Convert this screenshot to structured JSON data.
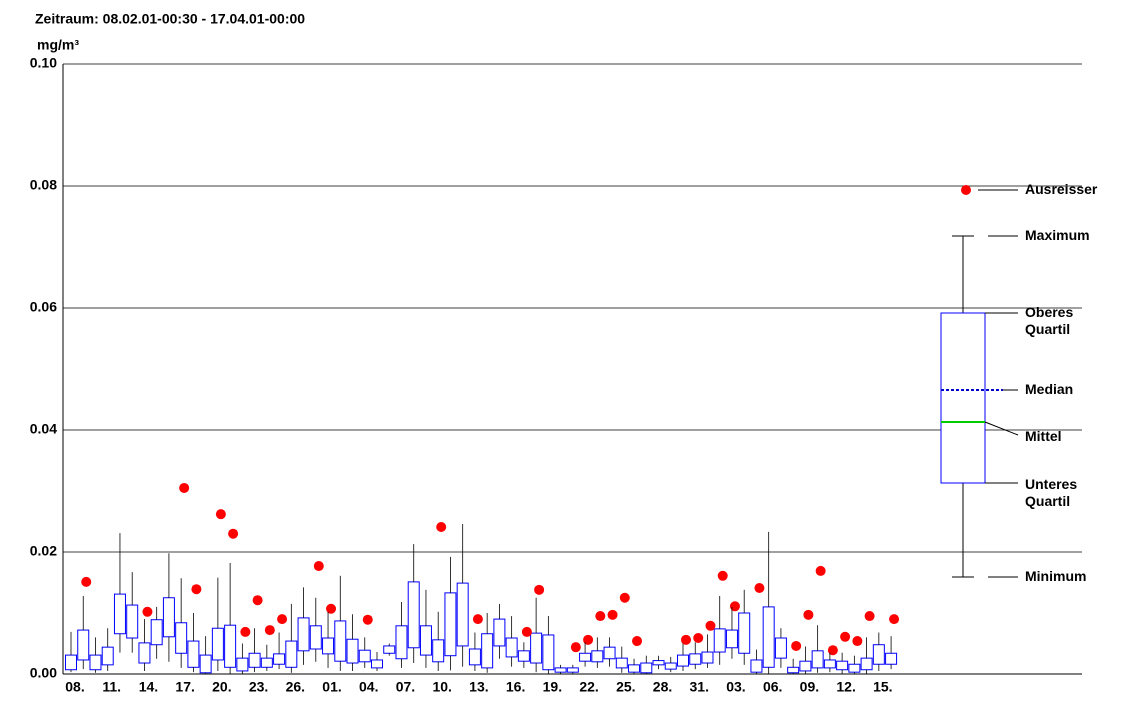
{
  "chart_data": {
    "type": "box",
    "title": "Zeitraum: 08.02.01-00:30 - 17.04.01-00:00",
    "y_label": "mg/m³",
    "categories": [
      "08.",
      null,
      null,
      "11.",
      null,
      null,
      "14.",
      null,
      null,
      "17.",
      null,
      null,
      "20.",
      null,
      null,
      "23.",
      null,
      null,
      "26.",
      null,
      null,
      "01.",
      null,
      null,
      "04.",
      null,
      null,
      "07.",
      null,
      null,
      "10.",
      null,
      null,
      "13.",
      null,
      null,
      "16.",
      null,
      null,
      "19.",
      null,
      null,
      "22.",
      null,
      null,
      "25.",
      null,
      null,
      "28.",
      null,
      null,
      "31.",
      null,
      null,
      "03.",
      null,
      null,
      "06.",
      null,
      null,
      "09.",
      null,
      null,
      "12.",
      null,
      null,
      "15.",
      null
    ],
    "min": [
      0.0003,
      0.0008,
      0.0002,
      0.0005,
      0.0035,
      0.0035,
      0.0005,
      0.0025,
      0.002,
      0.001,
      0.0003,
      0,
      0.0005,
      0,
      0,
      0.0003,
      0.0005,
      0.0008,
      0.0002,
      0.0015,
      0.002,
      0.001,
      0.0005,
      0.0005,
      0.001,
      0.0005,
      0.003,
      0.001,
      0.0018,
      0.001,
      0.0005,
      0.0006,
      0.0012,
      0.0005,
      0.0002,
      0.0025,
      0.0012,
      0.001,
      0.0003,
      0,
      0,
      0,
      0.0012,
      0.001,
      0.0012,
      0.0002,
      0,
      0,
      0.0008,
      0.0003,
      0.0005,
      0.0008,
      0.001,
      0.0015,
      0.0025,
      0.0015,
      0,
      0,
      0.001,
      0,
      0,
      0.0002,
      0.0003,
      0,
      0,
      0,
      0.0005,
      0.0008
    ],
    "q1": [
      0.0007,
      0.0023,
      0.0007,
      0.0015,
      0.0066,
      0.0059,
      0.0018,
      0.0048,
      0.0061,
      0.0034,
      0.0011,
      0.0002,
      0.0023,
      0.0011,
      0.0005,
      0.0011,
      0.0011,
      0.0016,
      0.0011,
      0.0038,
      0.0041,
      0.0033,
      0.0021,
      0.0018,
      0.002,
      0.001,
      0.0034,
      0.0025,
      0.0043,
      0.0031,
      0.002,
      0.003,
      0.0046,
      0.0015,
      0.001,
      0.0046,
      0.0028,
      0.0021,
      0.0018,
      0.0007,
      0.0003,
      0.0003,
      0.0021,
      0.002,
      0.0025,
      0.001,
      0.0003,
      0.0002,
      0.0015,
      0.0008,
      0.0013,
      0.0016,
      0.0018,
      0.0036,
      0.0043,
      0.0034,
      0.0003,
      0.0011,
      0.0026,
      0.0002,
      0.0005,
      0.001,
      0.001,
      0.0007,
      0.0003,
      0.0007,
      0.0016,
      0.0016
    ],
    "median": [
      0.002,
      0.0048,
      0.0022,
      0.0036,
      0.0085,
      0.0088,
      0.004,
      0.007,
      0.0083,
      0.0057,
      0.003,
      0.0013,
      0.005,
      0.0045,
      0.0012,
      0.002,
      0.0018,
      0.0025,
      0.0038,
      0.0062,
      0.0058,
      0.0044,
      0.005,
      0.0042,
      0.0028,
      0.0016,
      0.004,
      0.0055,
      0.0097,
      0.006,
      0.004,
      0.01,
      0.0086,
      0.0022,
      0.0035,
      0.0065,
      0.0046,
      0.0028,
      0.0049,
      0.003,
      0.0006,
      0.0006,
      0.0027,
      0.0028,
      0.0037,
      0.0017,
      0.0009,
      0.001,
      0.0018,
      0.0012,
      0.002,
      0.0024,
      0.0026,
      0.0055,
      0.006,
      0.008,
      0.0012,
      0.005,
      0.0045,
      0.0006,
      0.001,
      0.0022,
      0.0017,
      0.0012,
      0.0008,
      0.0014,
      0.0035,
      0.0024
    ],
    "mean": [
      0.0025,
      0.0058,
      0.002,
      0.0035,
      0.0103,
      0.0091,
      0.004,
      0.0072,
      0.0095,
      0.0071,
      0.0035,
      0.0018,
      0.006,
      0.0065,
      0.0018,
      0.003,
      0.0021,
      0.0029,
      0.0038,
      0.0063,
      0.0065,
      0.0048,
      0.0058,
      0.0043,
      0.0033,
      0.0018,
      0.0042,
      0.0062,
      0.0098,
      0.006,
      0.0048,
      0.009,
      0.0098,
      0.0031,
      0.0037,
      0.0067,
      0.005,
      0.0033,
      0.0048,
      0.0031,
      0.0007,
      0.0007,
      0.003,
      0.003,
      0.004,
      0.0022,
      0.001,
      0.0012,
      0.0019,
      0.0014,
      0.0025,
      0.0027,
      0.003,
      0.0062,
      0.0065,
      0.0075,
      0.0017,
      0.0067,
      0.0047,
      0.0008,
      0.0015,
      0.003,
      0.002,
      0.0016,
      0.001,
      0.002,
      0.0035,
      0.0028
    ],
    "q3": [
      0.0031,
      0.0072,
      0.0031,
      0.0044,
      0.0131,
      0.0113,
      0.0051,
      0.0089,
      0.0125,
      0.0084,
      0.0054,
      0.0031,
      0.0075,
      0.008,
      0.0026,
      0.0034,
      0.0026,
      0.0033,
      0.0054,
      0.0092,
      0.0079,
      0.0059,
      0.0087,
      0.0057,
      0.0039,
      0.0023,
      0.0046,
      0.0079,
      0.0151,
      0.0079,
      0.0056,
      0.0133,
      0.0149,
      0.0041,
      0.0066,
      0.009,
      0.0059,
      0.0038,
      0.0067,
      0.0064,
      0.001,
      0.001,
      0.0034,
      0.0038,
      0.0044,
      0.0026,
      0.0015,
      0.0018,
      0.0022,
      0.0018,
      0.0031,
      0.0033,
      0.0036,
      0.0074,
      0.0072,
      0.01,
      0.0023,
      0.011,
      0.0059,
      0.0011,
      0.0021,
      0.0038,
      0.0023,
      0.0021,
      0.0016,
      0.0026,
      0.0048,
      0.0034
    ],
    "max": [
      0.0069,
      0.0128,
      0.006,
      0.0075,
      0.0231,
      0.0167,
      0.009,
      0.011,
      0.0198,
      0.0157,
      0.01,
      0.0062,
      0.0158,
      0.0182,
      0.005,
      0.0075,
      0.0048,
      0.0068,
      0.0115,
      0.0142,
      0.0125,
      0.0102,
      0.0161,
      0.0098,
      0.006,
      0.0036,
      0.005,
      0.0118,
      0.0213,
      0.0138,
      0.0102,
      0.0192,
      0.0246,
      0.0068,
      0.01,
      0.0115,
      0.0095,
      0.0052,
      0.0125,
      0.0095,
      0.0015,
      0.0015,
      0.0052,
      0.006,
      0.006,
      0.0045,
      0.0025,
      0.003,
      0.003,
      0.0028,
      0.005,
      0.0052,
      0.0065,
      0.0128,
      0.011,
      0.0138,
      0.004,
      0.0233,
      0.0075,
      0.0025,
      0.0045,
      0.008,
      0.0035,
      0.0035,
      0.003,
      0.006,
      0.0068,
      0.0062
    ],
    "outliers": [
      null,
      0.0151,
      null,
      null,
      null,
      null,
      0.0102,
      null,
      null,
      0.0305,
      0.0139,
      null,
      0.0262,
      0.023,
      0.0069,
      0.0121,
      0.0072,
      0.009,
      null,
      null,
      0.0177,
      0.0107,
      null,
      null,
      0.0089,
      null,
      null,
      null,
      null,
      null,
      0.0241,
      null,
      null,
      0.009,
      null,
      null,
      null,
      0.0069,
      0.0138,
      null,
      null,
      0.0044,
      0.0056,
      0.0095,
      0.0097,
      0.0125,
      0.0054,
      null,
      null,
      null,
      0.0056,
      0.0059,
      0.0079,
      0.0161,
      0.0111,
      null,
      0.0141,
      null,
      null,
      0.0046,
      0.0097,
      0.0169,
      0.0039,
      0.0061,
      0.0054,
      0.0095,
      null,
      0.009
    ],
    "box_color": "#0000ff",
    "median_color": "#0000cc",
    "mean_color": "#00cc00",
    "outlier_color": "#ff0000",
    "ylim": [
      0,
      0.1
    ],
    "yticks": [
      {
        "value": 0,
        "label": "0.00"
      },
      {
        "value": 0.02,
        "label": "0.02"
      },
      {
        "value": 0.04,
        "label": "0.04"
      },
      {
        "value": 0.06,
        "label": "0.06"
      },
      {
        "value": 0.08,
        "label": "0.08"
      },
      {
        "value": 0.1,
        "label": "0.10"
      }
    ],
    "grid": true,
    "legend": [
      "Ausreisser",
      "Maximum",
      "Oberes Quartil",
      "Median",
      "Mittel",
      "Unteres Quartil",
      "Minimum"
    ]
  }
}
